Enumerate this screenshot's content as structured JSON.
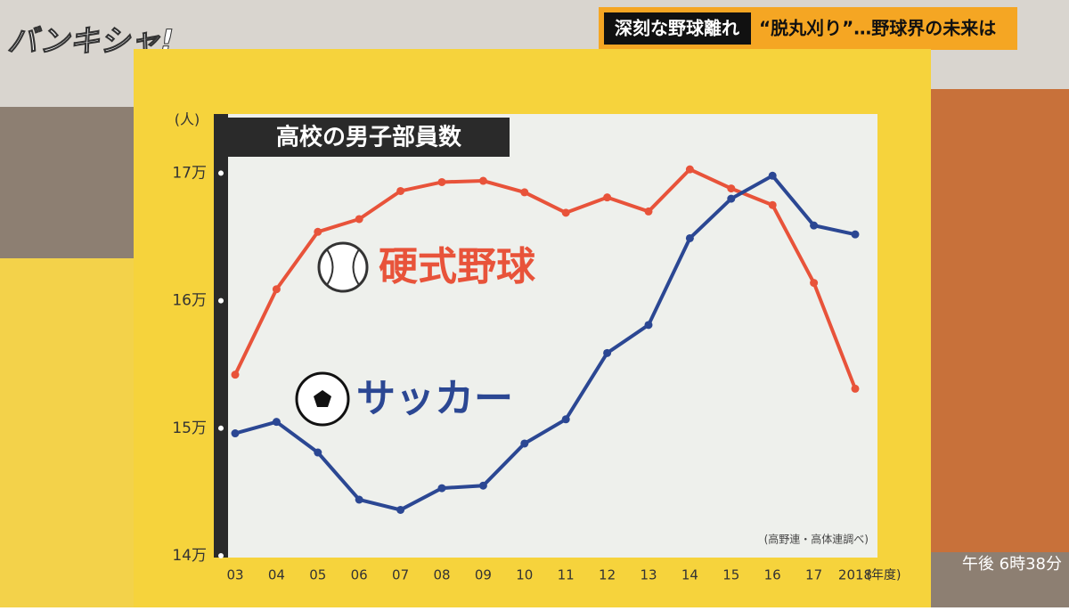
{
  "screen": {
    "logo": "バンキシャ!",
    "headline": "深刻な野球離れ",
    "subheadline": "“脱丸刈り”…野球界の未来は",
    "clock": "午後 6時38分"
  },
  "chart_data": {
    "type": "line",
    "title": "高校の男子部員数",
    "y_label": "(人)",
    "x_label": "(年度)",
    "source": "(高野連・高体連調べ)",
    "categories": [
      "03",
      "04",
      "05",
      "06",
      "07",
      "08",
      "09",
      "10",
      "11",
      "12",
      "13",
      "14",
      "15",
      "16",
      "17",
      "2018"
    ],
    "series": [
      {
        "name": "硬式野球",
        "color": "#e8533a",
        "values": [
          154200,
          160900,
          165400,
          166400,
          168600,
          169300,
          169400,
          168500,
          166900,
          168100,
          167000,
          170300,
          168800,
          167500,
          161400,
          153100
        ]
      },
      {
        "name": "サッカー",
        "color": "#2b4793",
        "values": [
          149600,
          150500,
          148100,
          144400,
          143600,
          145300,
          145500,
          148800,
          150700,
          155900,
          158100,
          164900,
          168000,
          169800,
          165900,
          165200
        ]
      }
    ],
    "ylim": [
      140000,
      174500
    ],
    "yticks": [
      {
        "value": 140000,
        "label": "14万"
      },
      {
        "value": 150000,
        "label": "15万"
      },
      {
        "value": 160000,
        "label": "16万"
      },
      {
        "value": 170000,
        "label": "17万"
      }
    ],
    "grid": false
  }
}
